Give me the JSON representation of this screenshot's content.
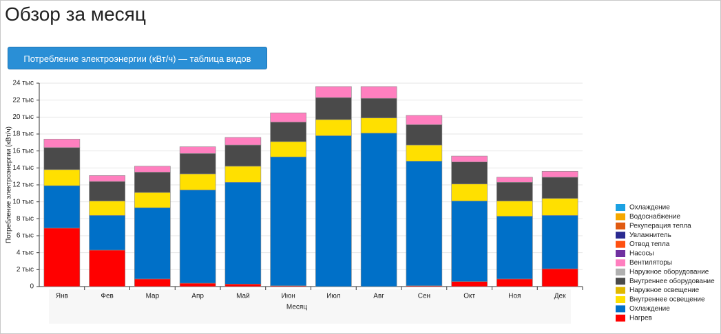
{
  "page_title": "Обзор за месяц",
  "button": "Потребление электроэнергии (кВт/ч) — таблица видов",
  "chart_data": {
    "type": "stacked_bar",
    "x_label": "Месяц",
    "y_label": "Потребление электроэнергии (кВт/ч)",
    "categories": [
      "Янв",
      "Фев",
      "Мар",
      "Апр",
      "Май",
      "Июн",
      "Июл",
      "Авг",
      "Сен",
      "Окт",
      "Ноя",
      "Дек"
    ],
    "ylim": [
      0,
      24000
    ],
    "yticks": [
      0,
      {
        "value": 2000,
        "label": "2 тыс"
      },
      {
        "value": 4000,
        "label": "4 тыс"
      },
      {
        "value": 6000,
        "label": "6 тыс"
      },
      {
        "value": 8000,
        "label": "8 тыс"
      },
      {
        "value": 10000,
        "label": "10 тыс"
      },
      {
        "value": 12000,
        "label": "12 тыс"
      },
      {
        "value": 14000,
        "label": "14 тыс"
      },
      {
        "value": 16000,
        "label": "16 тыс"
      },
      {
        "value": 18000,
        "label": "18 тыс"
      },
      {
        "value": 20000,
        "label": "20 тыс"
      },
      {
        "value": 22000,
        "label": "22 тыс"
      },
      {
        "value": 24000,
        "label": "24 тыс"
      }
    ],
    "grid": true,
    "series": [
      {
        "name": "Нагрев",
        "color": "#ff0000",
        "values": [
          6900,
          4300,
          900,
          400,
          300,
          100,
          0,
          0,
          100,
          600,
          900,
          2100
        ]
      },
      {
        "name": "Охлаждение",
        "color": "#0070c8",
        "values": [
          5000,
          4100,
          8400,
          11000,
          12000,
          15200,
          17800,
          18100,
          14700,
          9500,
          7400,
          6300
        ]
      },
      {
        "name": "Внутреннее освещение",
        "color": "#ffe000",
        "values": [
          1900,
          1700,
          1800,
          1900,
          1900,
          1800,
          1900,
          1800,
          1900,
          2000,
          1800,
          2000
        ]
      },
      {
        "name": "Наружное освещение",
        "color": "#e0b800",
        "values": [
          0,
          0,
          0,
          0,
          0,
          0,
          0,
          0,
          0,
          0,
          0,
          0
        ]
      },
      {
        "name": "Внутреннее оборудование",
        "color": "#4a4a4a",
        "values": [
          2600,
          2300,
          2400,
          2400,
          2500,
          2300,
          2600,
          2300,
          2400,
          2600,
          2200,
          2500
        ]
      },
      {
        "name": "Наружное оборудование",
        "color": "#b0b0b0",
        "values": [
          0,
          0,
          0,
          0,
          0,
          0,
          0,
          0,
          0,
          0,
          0,
          0
        ]
      },
      {
        "name": "Вентиляторы",
        "color": "#ff7fbf",
        "values": [
          1000,
          700,
          700,
          800,
          900,
          1100,
          1300,
          1400,
          1100,
          700,
          600,
          700
        ]
      },
      {
        "name": "Насосы",
        "color": "#7030a0",
        "values": [
          0,
          0,
          0,
          0,
          0,
          0,
          0,
          0,
          0,
          0,
          0,
          0
        ]
      },
      {
        "name": "Отвод тепла",
        "color": "#ff5010",
        "values": [
          0,
          0,
          0,
          0,
          0,
          0,
          0,
          0,
          0,
          0,
          0,
          0
        ]
      },
      {
        "name": "Увлажнитель",
        "color": "#2a2a90",
        "values": [
          0,
          0,
          0,
          0,
          0,
          0,
          0,
          0,
          0,
          0,
          0,
          0
        ]
      },
      {
        "name": "Рекуперация тепла",
        "color": "#e05a10",
        "values": [
          0,
          0,
          0,
          0,
          0,
          0,
          0,
          0,
          0,
          0,
          0,
          0
        ]
      },
      {
        "name": "Водоснабжение",
        "color": "#f5a800",
        "values": [
          0,
          0,
          0,
          0,
          0,
          0,
          0,
          0,
          0,
          0,
          0,
          0
        ]
      },
      {
        "name": "Охлаждение",
        "color": "#1ba1e2",
        "values": [
          0,
          0,
          0,
          0,
          0,
          0,
          0,
          0,
          0,
          0,
          0,
          0
        ]
      }
    ]
  }
}
